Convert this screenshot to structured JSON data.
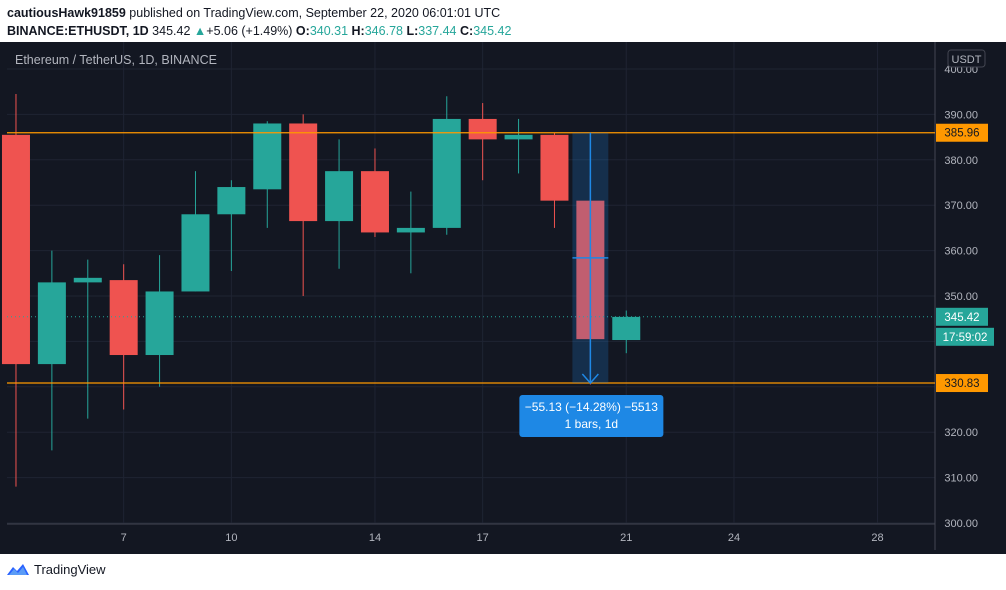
{
  "header": {
    "author": "cautiousHawk91859",
    "published_text": "published on TradingView.com, September 22, 2020 06:01:01 UTC",
    "symbol": "BINANCE:ETHUSDT, 1D",
    "last_price": "345.42",
    "change_arrow": "▲",
    "change": "+5.06 (+1.49%)",
    "open_label": "O:",
    "open": "340.31",
    "high_label": "H:",
    "high": "346.78",
    "low_label": "L:",
    "low": "337.44",
    "close_label": "C:",
    "close": "345.42"
  },
  "footer": {
    "brand": "TradingView"
  },
  "colors": {
    "background": "#131722",
    "bull": "#26a69a",
    "bear": "#ef5350",
    "level_line": "#ff9800",
    "measure": "#1e88e5",
    "text": "#b2b5be"
  },
  "chart_data": {
    "type": "candlestick",
    "title": "Ethereum / TetherUS, 1D, BINANCE",
    "currency": "USDT",
    "ylim": [
      300,
      400
    ],
    "ticks_y": [
      "300.00",
      "310.00",
      "320.00",
      "330.00",
      "340.00",
      "350.00",
      "360.00",
      "370.00",
      "380.00",
      "390.00",
      "400.00"
    ],
    "ticks_x": [
      {
        "day": 7,
        "label": "7"
      },
      {
        "day": 10,
        "label": "10"
      },
      {
        "day": 14,
        "label": "14"
      },
      {
        "day": 17,
        "label": "17"
      },
      {
        "day": 21,
        "label": "21"
      },
      {
        "day": 24,
        "label": "24"
      },
      {
        "day": 28,
        "label": "28"
      }
    ],
    "xlim_days": [
      3.75,
      29.6
    ],
    "candles": [
      {
        "day": 4,
        "open": 385.5,
        "high": 394.5,
        "low": 308.0,
        "close": 335.0
      },
      {
        "day": 5,
        "open": 335.0,
        "high": 360.0,
        "low": 316.0,
        "close": 353.0
      },
      {
        "day": 6,
        "open": 353.0,
        "high": 358.0,
        "low": 323.0,
        "close": 354.0
      },
      {
        "day": 7,
        "open": 353.5,
        "high": 357.0,
        "low": 325.0,
        "close": 337.0
      },
      {
        "day": 8,
        "open": 337.0,
        "high": 359.0,
        "low": 330.0,
        "close": 351.0
      },
      {
        "day": 9,
        "open": 351.0,
        "high": 377.5,
        "low": 351.0,
        "close": 368.0
      },
      {
        "day": 10,
        "open": 368.0,
        "high": 375.5,
        "low": 355.5,
        "close": 374.0
      },
      {
        "day": 11,
        "open": 373.5,
        "high": 388.5,
        "low": 365.0,
        "close": 388.0
      },
      {
        "day": 12,
        "open": 388.0,
        "high": 390.0,
        "low": 350.0,
        "close": 366.5
      },
      {
        "day": 13,
        "open": 366.5,
        "high": 384.5,
        "low": 356.0,
        "close": 377.5
      },
      {
        "day": 14,
        "open": 377.5,
        "high": 382.5,
        "low": 363.0,
        "close": 364.0
      },
      {
        "day": 15,
        "open": 364.0,
        "high": 373.0,
        "low": 355.0,
        "close": 365.0
      },
      {
        "day": 16,
        "open": 365.0,
        "high": 394.0,
        "low": 363.5,
        "close": 389.0
      },
      {
        "day": 17,
        "open": 389.0,
        "high": 392.5,
        "low": 375.5,
        "close": 384.5
      },
      {
        "day": 18,
        "open": 384.5,
        "high": 389.0,
        "low": 377.0,
        "close": 385.5
      },
      {
        "day": 19,
        "open": 385.5,
        "high": 386.0,
        "low": 365.0,
        "close": 371.0
      },
      {
        "day": 20,
        "open": 371.0,
        "high": 376.5,
        "low": 330.5,
        "close": 340.5
      },
      {
        "day": 21,
        "open": 340.3,
        "high": 346.8,
        "low": 337.4,
        "close": 345.4
      }
    ],
    "levels": [
      {
        "price": 385.96,
        "label": "385.96"
      },
      {
        "price": 330.83,
        "label": "330.83"
      }
    ],
    "last": {
      "price": 345.42,
      "label": "345.42",
      "countdown": "17:59:02"
    },
    "measure": {
      "from_day": 19.5,
      "from_price": 385.96,
      "to_price": 330.83,
      "width_days": 1,
      "line1": "−55.13 (−14.28%) −5513",
      "line2": "1 bars, 1d"
    }
  }
}
